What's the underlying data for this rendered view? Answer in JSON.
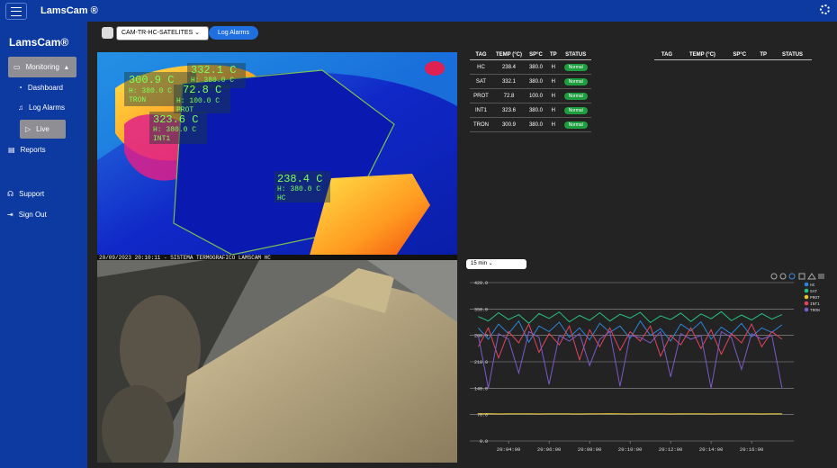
{
  "header": {
    "app_name": "LamsCam ®"
  },
  "sidebar": {
    "brand": "LamsCam®",
    "items": [
      "Monitoring",
      "Dashboard",
      "Log Alarms",
      "Live",
      "Reports",
      "Support",
      "Sign Out"
    ]
  },
  "toolbar": {
    "camera": "CAM-TR-HC-SATELITES",
    "button": "Log Alarms"
  },
  "thermal": {
    "overlays": [
      {
        "temp": "300.9 C",
        "limit": "H: 380.0 C",
        "tag": "TRON"
      },
      {
        "temp": "332.1 C",
        "limit": "H: 380.0 C"
      },
      {
        "temp": "72.8 C",
        "limit": "H: 100.0 C",
        "tag": "PROT"
      },
      {
        "temp": "323.6 C",
        "limit": "H: 380.0 C",
        "tag": "INT1"
      },
      {
        "temp": "238.4 C",
        "limit": "H: 380.0 C",
        "tag": "HC"
      }
    ],
    "timestamp": "20/09/2023 20:10:11 - SISTEMA TERMOGRAFICO LAMSCAM HC"
  },
  "table": {
    "headers": [
      "TAG",
      "TEMP (°C)",
      "SP°C",
      "TP",
      "STATUS"
    ],
    "rows": [
      [
        "HC",
        "238.4",
        "380.0",
        "H",
        "Normal"
      ],
      [
        "SAT",
        "332.1",
        "380.0",
        "H",
        "Normal"
      ],
      [
        "PROT",
        "72.8",
        "100.0",
        "H",
        "Normal"
      ],
      [
        "INT1",
        "323.6",
        "380.0",
        "H",
        "Normal"
      ],
      [
        "TRON",
        "300.9",
        "380.0",
        "H",
        "Normal"
      ]
    ]
  },
  "table2": {
    "headers": [
      "TAG",
      "TEMP (°C)",
      "SP°C",
      "TP",
      "STATUS"
    ]
  },
  "range": "15 min",
  "chart_data": {
    "type": "line",
    "x": [
      "20:02:30",
      "20:03:00",
      "20:03:30",
      "20:04:00",
      "20:04:30",
      "20:05:00",
      "20:05:30",
      "20:06:00",
      "20:06:30",
      "20:07:00",
      "20:07:30",
      "20:08:00",
      "20:08:30",
      "20:09:00",
      "20:09:30",
      "20:10:00",
      "20:10:30",
      "20:11:00",
      "20:11:30",
      "20:12:00",
      "20:12:30",
      "20:13:00",
      "20:13:30",
      "20:14:00",
      "20:14:30",
      "20:15:00",
      "20:15:30",
      "20:16:00",
      "20:16:30",
      "20:17:00",
      "20:17:30"
    ],
    "xlim": [
      "20:02:05",
      "20:18:05"
    ],
    "xticks": [
      "20:04:00",
      "20:06:00",
      "20:08:00",
      "20:10:00",
      "20:12:00",
      "20:14:00",
      "20:16:00"
    ],
    "ylim": [
      0,
      420
    ],
    "yticks": [
      {
        "value": 0,
        "label": "0.0"
      },
      {
        "value": 70,
        "label": "70.0"
      },
      {
        "value": 140,
        "label": "140.0"
      },
      {
        "value": 210,
        "label": "210.0"
      },
      {
        "value": 280,
        "label": "280.0"
      },
      {
        "value": 350,
        "label": "350.0"
      },
      {
        "value": 420,
        "label": "420.0"
      }
    ],
    "grid": true,
    "series": [
      {
        "name": "HC",
        "color": "#2a84d8",
        "values": [
          300,
          270,
          310,
          285,
          318,
          262,
          305,
          290,
          315,
          275,
          300,
          268,
          312,
          288,
          305,
          272,
          318,
          280,
          298,
          265,
          310,
          292,
          316,
          270,
          302,
          284,
          312,
          276,
          300,
          288,
          308
        ]
      },
      {
        "name": "SAT",
        "color": "#26c281",
        "values": [
          330,
          318,
          340,
          322,
          335,
          312,
          338,
          325,
          342,
          316,
          333,
          320,
          340,
          318,
          336,
          326,
          341,
          314,
          332,
          322,
          339,
          317,
          337,
          324,
          343,
          319,
          334,
          321,
          338,
          323,
          335
        ]
      },
      {
        "name": "PROT",
        "color": "#e8c22a",
        "values": [
          72,
          72.5,
          71.8,
          72.2,
          72,
          72.4,
          71.9,
          72.1,
          72.3,
          72,
          71.8,
          72.2,
          72,
          72.5,
          72.1,
          71.9,
          72.3,
          72,
          72.2,
          71.8,
          72.1,
          72.4,
          72,
          71.9,
          72.2,
          72,
          72.3,
          72.1,
          71.8,
          72.2,
          72
        ]
      },
      {
        "name": "INT1",
        "color": "#e2445c",
        "values": [
          250,
          300,
          220,
          290,
          260,
          310,
          235,
          285,
          255,
          305,
          215,
          295,
          250,
          300,
          240,
          290,
          265,
          305,
          225,
          280,
          255,
          300,
          245,
          295,
          230,
          285,
          260,
          310,
          250,
          290,
          270
        ]
      },
      {
        "name": "TRON",
        "color": "#7b5bc9",
        "values": [
          280,
          140,
          285,
          270,
          180,
          290,
          275,
          150,
          280,
          265,
          285,
          200,
          270,
          290,
          145,
          280,
          275,
          260,
          290,
          170,
          285,
          270,
          280,
          140,
          290,
          275,
          190,
          285,
          270,
          280,
          140
        ]
      }
    ]
  }
}
